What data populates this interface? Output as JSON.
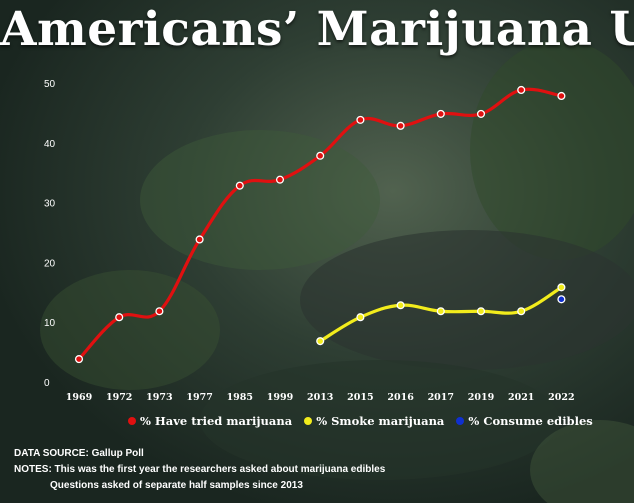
{
  "title": "Americans’ Marijuana Use",
  "chart_data": {
    "type": "line",
    "categories": [
      "1969",
      "1972",
      "1973",
      "1977",
      "1985",
      "1999",
      "2013",
      "2015",
      "2016",
      "2017",
      "2019",
      "2021",
      "2022"
    ],
    "yticks": [
      0,
      10,
      20,
      30,
      40,
      50
    ],
    "ylim": [
      0,
      50
    ],
    "grid": false,
    "legend_position": "bottom",
    "series": [
      {
        "name": "% Have tried marijuana",
        "color": "#e01010",
        "values": [
          4,
          11,
          12,
          24,
          33,
          34,
          38,
          44,
          43,
          45,
          45,
          49,
          48
        ]
      },
      {
        "name": "% Smoke marijuana",
        "color": "#f2ec1c",
        "values": [
          null,
          null,
          null,
          null,
          null,
          null,
          7,
          11,
          13,
          12,
          12,
          12,
          16
        ]
      },
      {
        "name": "% Consume edibles",
        "color": "#1030d0",
        "values": [
          null,
          null,
          null,
          null,
          null,
          null,
          null,
          null,
          null,
          null,
          null,
          null,
          14
        ]
      }
    ]
  },
  "legend": [
    {
      "label": "% Have tried marijuana",
      "color": "#e01010"
    },
    {
      "label": "% Smoke marijuana",
      "color": "#f2ec1c"
    },
    {
      "label": "% Consume edibles",
      "color": "#1030d0"
    }
  ],
  "notes": {
    "source": "DATA SOURCE: Gallup Poll",
    "line1": "NOTES: This was the first year the researchers asked about marijuana edibles",
    "line2": "Questions asked of separate half samples since 2013"
  }
}
